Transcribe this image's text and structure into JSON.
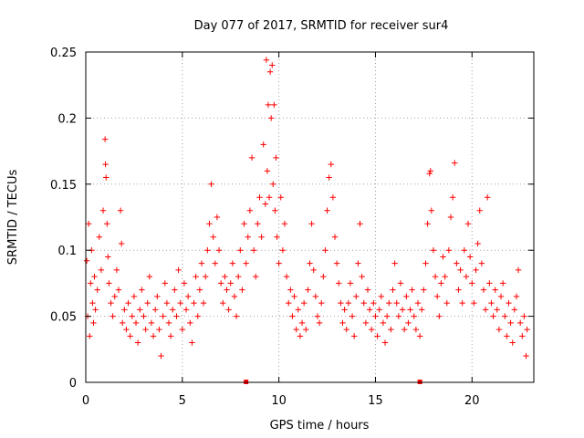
{
  "chart_data": {
    "type": "scatter",
    "title": "Day 077 of 2017, SRMTID for receiver sur4",
    "xlabel": "GPS time / hours",
    "ylabel": "SRMTID / TECUs",
    "xlim": [
      0,
      23.2
    ],
    "ylim": [
      0,
      0.25
    ],
    "xticks": [
      0,
      5,
      10,
      15,
      20
    ],
    "xtick_labels": [
      "0",
      "5",
      "10",
      "15",
      "20"
    ],
    "yticks": [
      0,
      0.05,
      0.1,
      0.15,
      0.2,
      0.25
    ],
    "ytick_labels": [
      "0",
      "0.05",
      "0.1",
      "0.15",
      "0.2",
      "0.25"
    ],
    "grid": true,
    "marker": "+",
    "color": "#ff0000",
    "data_gaps_at_zero": [
      8.3,
      17.3
    ],
    "series": [
      {
        "name": "SRMTID",
        "points": [
          [
            0.05,
            0.092
          ],
          [
            0.1,
            0.05
          ],
          [
            0.15,
            0.12
          ],
          [
            0.2,
            0.035
          ],
          [
            0.25,
            0.075
          ],
          [
            0.3,
            0.1
          ],
          [
            0.35,
            0.06
          ],
          [
            0.4,
            0.045
          ],
          [
            0.45,
            0.08
          ],
          [
            0.5,
            0.055
          ],
          [
            0.6,
            0.07
          ],
          [
            0.7,
            0.11
          ],
          [
            0.8,
            0.085
          ],
          [
            0.9,
            0.13
          ],
          [
            1.0,
            0.184
          ],
          [
            1.02,
            0.165
          ],
          [
            1.05,
            0.155
          ],
          [
            1.1,
            0.12
          ],
          [
            1.15,
            0.095
          ],
          [
            1.2,
            0.075
          ],
          [
            1.3,
            0.06
          ],
          [
            1.4,
            0.05
          ],
          [
            1.5,
            0.065
          ],
          [
            1.6,
            0.085
          ],
          [
            1.7,
            0.07
          ],
          [
            1.8,
            0.13
          ],
          [
            1.85,
            0.105
          ],
          [
            1.9,
            0.045
          ],
          [
            2.0,
            0.055
          ],
          [
            2.1,
            0.04
          ],
          [
            2.2,
            0.06
          ],
          [
            2.3,
            0.035
          ],
          [
            2.4,
            0.05
          ],
          [
            2.5,
            0.065
          ],
          [
            2.6,
            0.045
          ],
          [
            2.7,
            0.03
          ],
          [
            2.8,
            0.055
          ],
          [
            2.9,
            0.07
          ],
          [
            3.0,
            0.05
          ],
          [
            3.1,
            0.04
          ],
          [
            3.2,
            0.06
          ],
          [
            3.3,
            0.08
          ],
          [
            3.4,
            0.045
          ],
          [
            3.5,
            0.035
          ],
          [
            3.6,
            0.055
          ],
          [
            3.7,
            0.065
          ],
          [
            3.8,
            0.04
          ],
          [
            3.9,
            0.02
          ],
          [
            4.0,
            0.05
          ],
          [
            4.1,
            0.075
          ],
          [
            4.2,
            0.06
          ],
          [
            4.3,
            0.045
          ],
          [
            4.4,
            0.035
          ],
          [
            4.5,
            0.055
          ],
          [
            4.6,
            0.07
          ],
          [
            4.7,
            0.05
          ],
          [
            4.8,
            0.085
          ],
          [
            4.9,
            0.06
          ],
          [
            5.0,
            0.04
          ],
          [
            5.1,
            0.075
          ],
          [
            5.2,
            0.055
          ],
          [
            5.3,
            0.065
          ],
          [
            5.4,
            0.045
          ],
          [
            5.5,
            0.03
          ],
          [
            5.6,
            0.06
          ],
          [
            5.7,
            0.08
          ],
          [
            5.8,
            0.05
          ],
          [
            5.9,
            0.07
          ],
          [
            6.0,
            0.09
          ],
          [
            6.1,
            0.06
          ],
          [
            6.2,
            0.08
          ],
          [
            6.3,
            0.1
          ],
          [
            6.4,
            0.12
          ],
          [
            6.5,
            0.15
          ],
          [
            6.6,
            0.11
          ],
          [
            6.7,
            0.09
          ],
          [
            6.8,
            0.125
          ],
          [
            6.9,
            0.1
          ],
          [
            7.0,
            0.075
          ],
          [
            7.1,
            0.06
          ],
          [
            7.2,
            0.08
          ],
          [
            7.3,
            0.07
          ],
          [
            7.4,
            0.055
          ],
          [
            7.5,
            0.075
          ],
          [
            7.6,
            0.09
          ],
          [
            7.7,
            0.065
          ],
          [
            7.8,
            0.05
          ],
          [
            7.9,
            0.08
          ],
          [
            8.0,
            0.1
          ],
          [
            8.1,
            0.07
          ],
          [
            8.2,
            0.12
          ],
          [
            8.3,
            0.09
          ],
          [
            8.4,
            0.11
          ],
          [
            8.5,
            0.13
          ],
          [
            8.6,
            0.17
          ],
          [
            8.7,
            0.1
          ],
          [
            8.8,
            0.08
          ],
          [
            8.9,
            0.12
          ],
          [
            9.0,
            0.14
          ],
          [
            9.1,
            0.11
          ],
          [
            9.2,
            0.18
          ],
          [
            9.3,
            0.135
          ],
          [
            9.35,
            0.244
          ],
          [
            9.4,
            0.16
          ],
          [
            9.45,
            0.21
          ],
          [
            9.5,
            0.14
          ],
          [
            9.55,
            0.235
          ],
          [
            9.6,
            0.2
          ],
          [
            9.65,
            0.24
          ],
          [
            9.7,
            0.15
          ],
          [
            9.75,
            0.21
          ],
          [
            9.8,
            0.13
          ],
          [
            9.85,
            0.17
          ],
          [
            9.9,
            0.11
          ],
          [
            10.0,
            0.09
          ],
          [
            10.1,
            0.14
          ],
          [
            10.2,
            0.1
          ],
          [
            10.3,
            0.12
          ],
          [
            10.4,
            0.08
          ],
          [
            10.5,
            0.06
          ],
          [
            10.6,
            0.07
          ],
          [
            10.7,
            0.05
          ],
          [
            10.8,
            0.065
          ],
          [
            10.9,
            0.04
          ],
          [
            11.0,
            0.055
          ],
          [
            11.1,
            0.035
          ],
          [
            11.2,
            0.045
          ],
          [
            11.3,
            0.06
          ],
          [
            11.4,
            0.04
          ],
          [
            11.5,
            0.07
          ],
          [
            11.6,
            0.09
          ],
          [
            11.7,
            0.12
          ],
          [
            11.8,
            0.085
          ],
          [
            11.9,
            0.065
          ],
          [
            12.0,
            0.05
          ],
          [
            12.1,
            0.045
          ],
          [
            12.2,
            0.06
          ],
          [
            12.3,
            0.08
          ],
          [
            12.4,
            0.1
          ],
          [
            12.5,
            0.13
          ],
          [
            12.6,
            0.155
          ],
          [
            12.7,
            0.165
          ],
          [
            12.8,
            0.14
          ],
          [
            12.9,
            0.11
          ],
          [
            13.0,
            0.09
          ],
          [
            13.1,
            0.075
          ],
          [
            13.2,
            0.06
          ],
          [
            13.3,
            0.045
          ],
          [
            13.4,
            0.055
          ],
          [
            13.5,
            0.04
          ],
          [
            13.6,
            0.06
          ],
          [
            13.7,
            0.075
          ],
          [
            13.8,
            0.05
          ],
          [
            13.9,
            0.035
          ],
          [
            14.0,
            0.065
          ],
          [
            14.1,
            0.09
          ],
          [
            14.2,
            0.12
          ],
          [
            14.3,
            0.08
          ],
          [
            14.4,
            0.06
          ],
          [
            14.5,
            0.045
          ],
          [
            14.6,
            0.07
          ],
          [
            14.7,
            0.055
          ],
          [
            14.8,
            0.04
          ],
          [
            14.9,
            0.06
          ],
          [
            15.0,
            0.05
          ],
          [
            15.1,
            0.035
          ],
          [
            15.2,
            0.055
          ],
          [
            15.3,
            0.065
          ],
          [
            15.4,
            0.045
          ],
          [
            15.5,
            0.03
          ],
          [
            15.6,
            0.05
          ],
          [
            15.7,
            0.06
          ],
          [
            15.8,
            0.04
          ],
          [
            15.9,
            0.07
          ],
          [
            16.0,
            0.09
          ],
          [
            16.1,
            0.06
          ],
          [
            16.2,
            0.05
          ],
          [
            16.3,
            0.075
          ],
          [
            16.4,
            0.055
          ],
          [
            16.5,
            0.04
          ],
          [
            16.6,
            0.065
          ],
          [
            16.7,
            0.045
          ],
          [
            16.8,
            0.055
          ],
          [
            16.9,
            0.07
          ],
          [
            17.0,
            0.05
          ],
          [
            17.1,
            0.04
          ],
          [
            17.2,
            0.06
          ],
          [
            17.3,
            0.035
          ],
          [
            17.4,
            0.055
          ],
          [
            17.5,
            0.07
          ],
          [
            17.6,
            0.09
          ],
          [
            17.7,
            0.12
          ],
          [
            17.8,
            0.158
          ],
          [
            17.85,
            0.16
          ],
          [
            17.9,
            0.13
          ],
          [
            18.0,
            0.1
          ],
          [
            18.1,
            0.08
          ],
          [
            18.2,
            0.065
          ],
          [
            18.3,
            0.05
          ],
          [
            18.4,
            0.075
          ],
          [
            18.5,
            0.095
          ],
          [
            18.6,
            0.08
          ],
          [
            18.7,
            0.06
          ],
          [
            18.8,
            0.1
          ],
          [
            18.9,
            0.125
          ],
          [
            19.0,
            0.14
          ],
          [
            19.1,
            0.166
          ],
          [
            19.2,
            0.09
          ],
          [
            19.3,
            0.07
          ],
          [
            19.4,
            0.085
          ],
          [
            19.5,
            0.06
          ],
          [
            19.6,
            0.1
          ],
          [
            19.7,
            0.08
          ],
          [
            19.8,
            0.12
          ],
          [
            19.9,
            0.095
          ],
          [
            20.0,
            0.075
          ],
          [
            20.1,
            0.06
          ],
          [
            20.2,
            0.085
          ],
          [
            20.3,
            0.105
          ],
          [
            20.4,
            0.13
          ],
          [
            20.5,
            0.09
          ],
          [
            20.6,
            0.07
          ],
          [
            20.7,
            0.055
          ],
          [
            20.8,
            0.14
          ],
          [
            20.9,
            0.075
          ],
          [
            21.0,
            0.06
          ],
          [
            21.1,
            0.05
          ],
          [
            21.2,
            0.07
          ],
          [
            21.3,
            0.055
          ],
          [
            21.4,
            0.04
          ],
          [
            21.5,
            0.065
          ],
          [
            21.6,
            0.075
          ],
          [
            21.7,
            0.05
          ],
          [
            21.8,
            0.035
          ],
          [
            21.9,
            0.06
          ],
          [
            22.0,
            0.045
          ],
          [
            22.1,
            0.03
          ],
          [
            22.2,
            0.055
          ],
          [
            22.3,
            0.065
          ],
          [
            22.4,
            0.085
          ],
          [
            22.5,
            0.045
          ],
          [
            22.6,
            0.035
          ],
          [
            22.7,
            0.05
          ],
          [
            22.8,
            0.02
          ],
          [
            22.85,
            0.04
          ]
        ]
      }
    ]
  }
}
